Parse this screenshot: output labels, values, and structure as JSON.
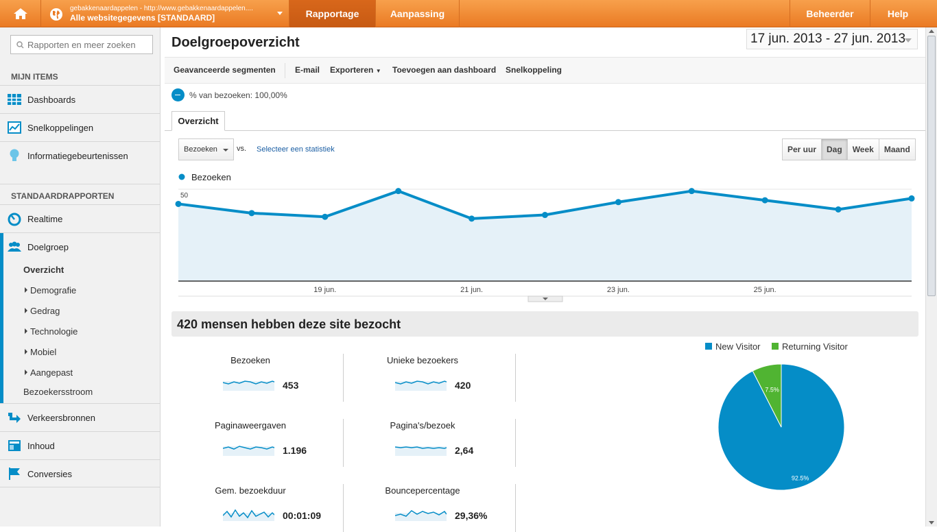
{
  "topbar": {
    "account_url": "gebakkenaardappelen - http://www.gebakkenaardappelen....",
    "account_view": "Alle websitegegevens [STANDAARD]",
    "tabs": [
      "Rapportage",
      "Aanpassing"
    ],
    "admin": "Beheerder",
    "help": "Help"
  },
  "sidebar": {
    "search_placeholder": "Rapporten en meer zoeken",
    "my_items_header": "MIJN ITEMS",
    "my_items": [
      "Dashboards",
      "Snelkoppelingen",
      "Informatiegebeurtenissen"
    ],
    "standard_header": "STANDAARDRAPPORTEN",
    "realtime": "Realtime",
    "audience": "Doelgroep",
    "audience_sub": [
      "Overzicht",
      "Demografie",
      "Gedrag",
      "Technologie",
      "Mobiel",
      "Aangepast",
      "Bezoekersstroom"
    ],
    "other": [
      "Verkeersbronnen",
      "Inhoud",
      "Conversies"
    ]
  },
  "main": {
    "title": "Doelgroepoverzicht",
    "date_range": "17 jun. 2013 - 27 jun. 2013",
    "toolbar": [
      "Geavanceerde segmenten",
      "E-mail",
      "Exporteren",
      "Toevoegen aan dashboard",
      "Snelkoppeling"
    ],
    "segment_text": "% van bezoeken: 100,00%",
    "tab": "Overzicht",
    "metric_select": "Bezoeken",
    "vs": "vs.",
    "select_stat": "Selecteer een statistiek",
    "period_buttons": [
      "Per uur",
      "Dag",
      "Week",
      "Maand"
    ],
    "active_period": "Dag",
    "summary": "420 mensen hebben deze site bezocht",
    "metrics": [
      {
        "name": "Bezoeken",
        "value": "453"
      },
      {
        "name": "Unieke bezoekers",
        "value": "420"
      },
      {
        "name": "Paginaweergaven",
        "value": "1.196"
      },
      {
        "name": "Pagina's/bezoek",
        "value": "2,64"
      },
      {
        "name": "Gem. bezoekduur",
        "value": "00:01:09"
      },
      {
        "name": "Bouncepercentage",
        "value": "29,36%"
      }
    ]
  },
  "colors": {
    "accent": "#058dc7",
    "returning": "#50b432",
    "orange": "#ea7a23"
  },
  "chart_data": [
    {
      "type": "line",
      "series": [
        {
          "name": "Bezoeken",
          "values": [
            42,
            37,
            35,
            49,
            34,
            36,
            43,
            49,
            44,
            39,
            45
          ]
        }
      ],
      "x": [
        "17 jun.",
        "18 jun.",
        "19 jun.",
        "20 jun.",
        "21 jun.",
        "22 jun.",
        "23 jun.",
        "24 jun.",
        "25 jun.",
        "26 jun.",
        "27 jun."
      ],
      "xtick_labels": [
        "19 jun.",
        "21 jun.",
        "23 jun.",
        "25 jun."
      ],
      "xtick_index": [
        2,
        4,
        6,
        8
      ],
      "yticks": [
        25,
        50
      ],
      "ylim": [
        0,
        50
      ],
      "grid": true
    },
    {
      "type": "pie",
      "labels": [
        "New Visitor",
        "Returning Visitor"
      ],
      "values": [
        92.5,
        7.5
      ],
      "value_labels": [
        "92.5%",
        "7.5%"
      ]
    }
  ]
}
